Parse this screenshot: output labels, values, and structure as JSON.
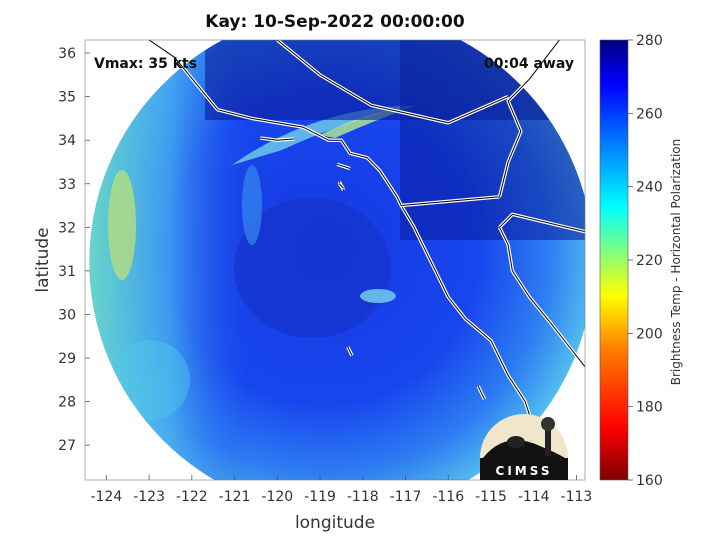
{
  "figure": {
    "title": "Kay: 10-Sep-2022 00:00:00",
    "vmax_text": "Vmax: 35 kts",
    "away_text": "00:04 away",
    "xlabel": "longitude",
    "ylabel": "latitude",
    "colorbar_label": "Brightness Temp - Horizontal Polarization",
    "logo_text": "CIMSS"
  },
  "map": {
    "lon_range": [
      -124.5,
      -112.8
    ],
    "lat_range": [
      26.2,
      36.3
    ],
    "lon_ticks": [
      -124,
      -123,
      -122,
      -121,
      -120,
      -119,
      -118,
      -117,
      -116,
      -115,
      -114,
      -113
    ],
    "lat_ticks": [
      27,
      28,
      29,
      30,
      31,
      32,
      33,
      34,
      35,
      36
    ],
    "swath_center": [
      -118.5,
      31.2
    ],
    "colorbar": {
      "range": [
        160,
        280
      ],
      "ticks": [
        160,
        180,
        200,
        220,
        240,
        260,
        280
      ],
      "colormap": "jet",
      "colors": [
        "#7f0000",
        "#ff0000",
        "#ff8000",
        "#ffff00",
        "#80ff80",
        "#00ffff",
        "#0080ff",
        "#0000ff",
        "#00007f"
      ]
    },
    "coastline": [
      [
        -123.0,
        36.3
      ],
      [
        -122.4,
        35.9
      ],
      [
        -121.9,
        35.3
      ],
      [
        -121.4,
        34.7
      ],
      [
        -120.6,
        34.5
      ],
      [
        -120.0,
        34.4
      ],
      [
        -119.4,
        34.3
      ],
      [
        -118.8,
        34.0
      ],
      [
        -118.5,
        34.0
      ],
      [
        -118.3,
        33.7
      ],
      [
        -117.9,
        33.6
      ],
      [
        -117.6,
        33.3
      ],
      [
        -117.2,
        32.7
      ],
      [
        -117.1,
        32.5
      ],
      [
        -116.8,
        32.0
      ],
      [
        -116.6,
        31.6
      ],
      [
        -116.3,
        31.0
      ],
      [
        -116.0,
        30.4
      ],
      [
        -115.6,
        29.9
      ],
      [
        -115.0,
        29.4
      ],
      [
        -114.6,
        28.6
      ],
      [
        -114.2,
        28.0
      ],
      [
        -114.1,
        27.7
      ]
    ],
    "gulf_coast": [
      [
        -114.8,
        32.0
      ],
      [
        -114.6,
        31.6
      ],
      [
        -114.5,
        31.0
      ],
      [
        -114.1,
        30.4
      ],
      [
        -113.6,
        29.8
      ],
      [
        -113.2,
        29.3
      ],
      [
        -112.8,
        28.8
      ]
    ],
    "border_us_mx": [
      [
        -117.1,
        32.5
      ],
      [
        -114.8,
        32.7
      ]
    ],
    "state_ca_az": [
      [
        -114.8,
        32.7
      ],
      [
        -114.6,
        33.5
      ],
      [
        -114.3,
        34.2
      ],
      [
        -114.6,
        34.9
      ],
      [
        -114.1,
        35.4
      ],
      [
        -113.4,
        36.3
      ]
    ],
    "state_ca_nv": [
      [
        -120.0,
        36.3
      ],
      [
        -119.0,
        35.5
      ],
      [
        -117.8,
        34.8
      ],
      [
        -116.0,
        34.4
      ],
      [
        -114.6,
        35.0
      ]
    ],
    "bc_border": [
      [
        -114.8,
        32.0
      ],
      [
        -114.5,
        32.3
      ],
      [
        -112.8,
        31.9
      ]
    ],
    "islands": [
      [
        [
          -120.4,
          34.05
        ],
        [
          -120.0,
          34.0
        ],
        [
          -119.6,
          34.03
        ]
      ],
      [
        [
          -118.6,
          33.45
        ],
        [
          -118.3,
          33.35
        ]
      ],
      [
        [
          -118.55,
          33.05
        ],
        [
          -118.45,
          32.85
        ]
      ],
      [
        [
          -118.55,
          33.0
        ],
        [
          -118.45,
          32.9
        ]
      ],
      [
        [
          -115.3,
          28.35
        ],
        [
          -115.15,
          28.05
        ]
      ],
      [
        [
          -118.35,
          29.25
        ],
        [
          -118.25,
          29.05
        ]
      ]
    ]
  }
}
